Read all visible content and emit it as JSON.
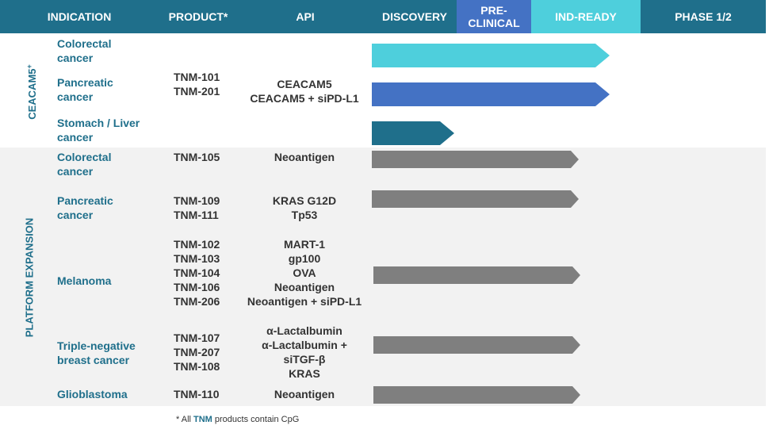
{
  "colors": {
    "header_dark": "#1f6f8b",
    "header_blue": "#4472c4",
    "header_cyan": "#4ecfdc",
    "arrow_cyan": "#4ecfdc",
    "arrow_blue": "#4472c4",
    "arrow_teal": "#1f6f8b",
    "arrow_gray": "#7f7f7f"
  },
  "header": {
    "indication": "INDICATION",
    "product": "PRODUCT*",
    "api": "API",
    "discovery": "DISCOVERY",
    "preclinical": "PRE-\nCLINICAL",
    "ind_ready": "IND-READY",
    "phase": "PHASE 1/2"
  },
  "groups": {
    "ceacam": "CEACAM5",
    "ceacam_sup": "+",
    "platform": "PLATFORM EXPANSION"
  },
  "rows": [
    {
      "indication": "Colorectal\ncancer",
      "stage": "IND-READY"
    },
    {
      "indication": "Pancreatic\ncancer",
      "product": "TNM-101\nTNM-201",
      "api": "CEACAM5\nCEACAM5 + siPD-L1",
      "stage": "IND-READY"
    },
    {
      "indication": "Stomach / Liver\ncancer",
      "stage": "DISCOVERY"
    },
    {
      "indication": "Colorectal\ncancer",
      "product": "TNM-105",
      "api": "Neoantigen",
      "stage": "PRE-CLINICAL"
    },
    {
      "indication": "Pancreatic\ncancer",
      "product": "TNM-109\nTNM-111",
      "api": "KRAS G12D\nTp53",
      "stage": "PRE-CLINICAL"
    },
    {
      "indication": "Melanoma",
      "product": "TNM-102\nTNM-103\nTNM-104\nTNM-106\nTNM-206",
      "api": "MART-1\ngp100\nOVA\nNeoantigen\nNeoantigen + siPD-L1",
      "stage": "PRE-CLINICAL"
    },
    {
      "indication": "Triple-negative\nbreast cancer",
      "product": "TNM-107\nTNM-207\nTNM-108",
      "api": "α-Lactalbumin\nα-Lactalbumin +\nsiTGF-β\nKRAS",
      "stage": "PRE-CLINICAL"
    },
    {
      "indication": "Glioblastoma",
      "product": "TNM-110",
      "api": "Neoantigen",
      "stage": "PRE-CLINICAL"
    }
  ],
  "footnote": {
    "prefix": "* All ",
    "tnm": "TNM",
    "suffix": " products contain CpG"
  }
}
